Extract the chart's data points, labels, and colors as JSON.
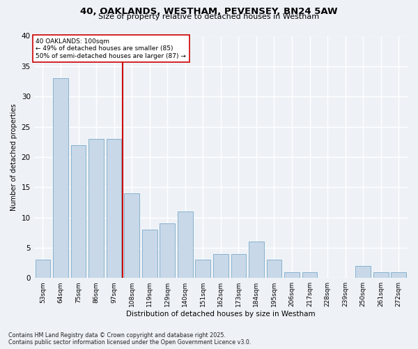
{
  "title1": "40, OAKLANDS, WESTHAM, PEVENSEY, BN24 5AW",
  "title2": "Size of property relative to detached houses in Westham",
  "xlabel": "Distribution of detached houses by size in Westham",
  "ylabel": "Number of detached properties",
  "categories": [
    "53sqm",
    "64sqm",
    "75sqm",
    "86sqm",
    "97sqm",
    "108sqm",
    "119sqm",
    "129sqm",
    "140sqm",
    "151sqm",
    "162sqm",
    "173sqm",
    "184sqm",
    "195sqm",
    "206sqm",
    "217sqm",
    "228sqm",
    "239sqm",
    "250sqm",
    "261sqm",
    "272sqm"
  ],
  "values": [
    3,
    33,
    22,
    23,
    23,
    14,
    8,
    9,
    11,
    3,
    4,
    4,
    6,
    3,
    1,
    1,
    0,
    0,
    2,
    1,
    1
  ],
  "bar_color": "#c8d8e8",
  "bar_edgecolor": "#7aaac8",
  "marker_label1": "40 OAKLANDS: 100sqm",
  "marker_label2": "← 49% of detached houses are smaller (85)",
  "marker_label3": "50% of semi-detached houses are larger (87) →",
  "marker_color": "#cc0000",
  "background_color": "#eef2f7",
  "grid_color": "#ffffff",
  "footnote1": "Contains HM Land Registry data © Crown copyright and database right 2025.",
  "footnote2": "Contains public sector information licensed under the Open Government Licence v3.0.",
  "ylim": [
    0,
    40
  ],
  "yticks": [
    0,
    5,
    10,
    15,
    20,
    25,
    30,
    35,
    40
  ]
}
